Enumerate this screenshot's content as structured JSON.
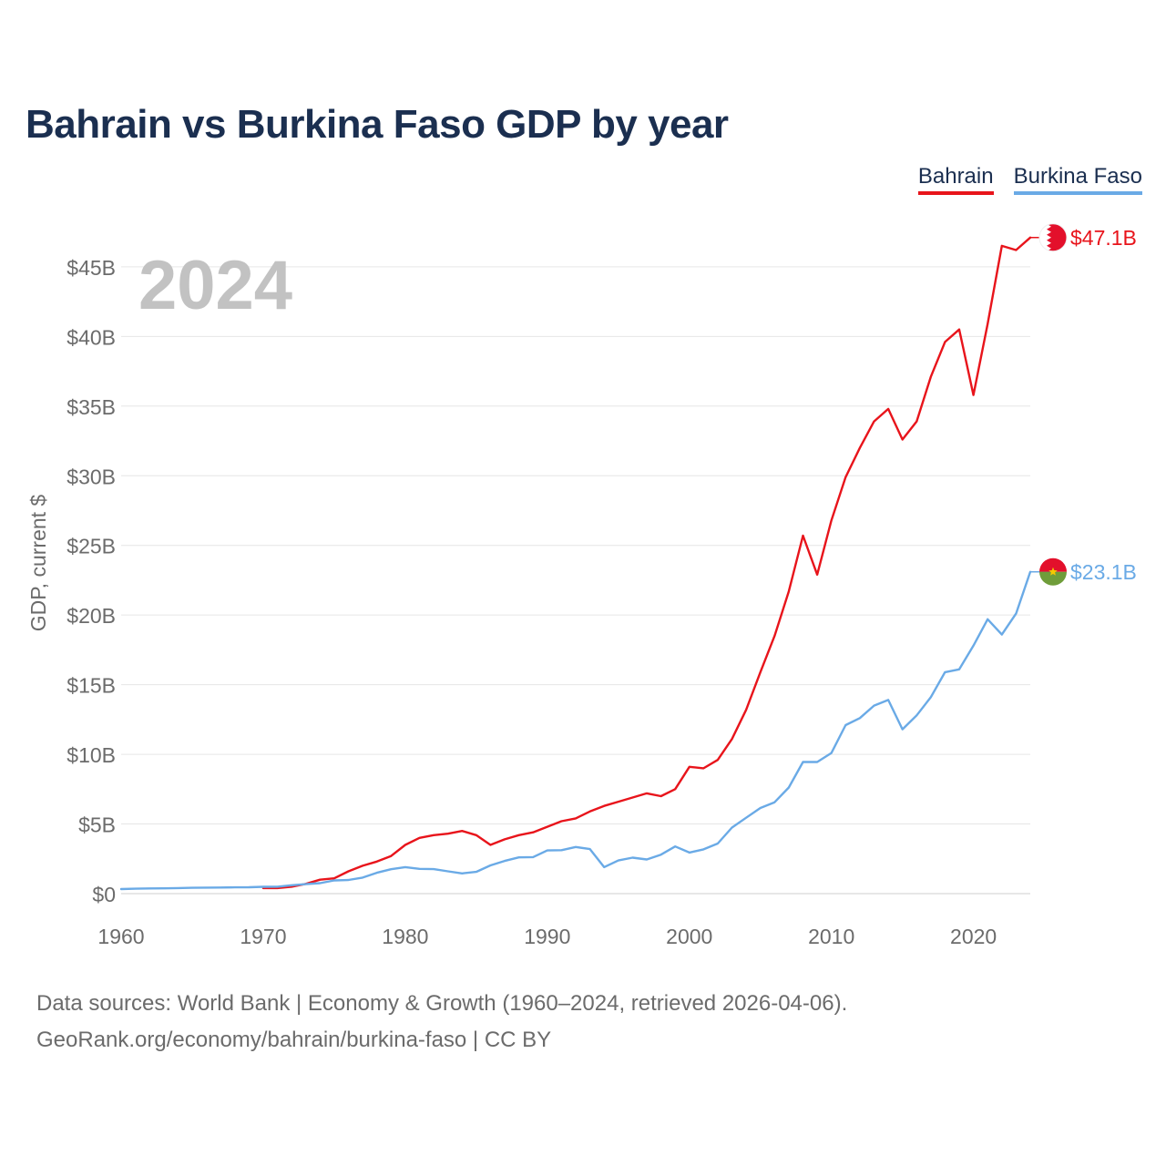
{
  "title": "Bahrain vs Burkina Faso GDP by year",
  "legend": [
    {
      "name": "Bahrain",
      "color": "#e8141b"
    },
    {
      "name": "Burkina Faso",
      "color": "#6aaae6"
    }
  ],
  "year_label": "2024",
  "source": {
    "line1": "Data sources: World Bank | Economy & Growth (1960–2024, retrieved 2026-04-06).",
    "line2": "GeoRank.org/economy/bahrain/burkina-faso | CC BY"
  },
  "chart_data": {
    "type": "line",
    "title": "Bahrain vs Burkina Faso GDP by year",
    "xlabel": "",
    "ylabel": "GDP, current $",
    "xlim": [
      1960,
      2024
    ],
    "ylim": [
      0,
      48
    ],
    "x_ticks": [
      1960,
      1970,
      1980,
      1990,
      2000,
      2010,
      2020
    ],
    "x_tick_labels": [
      "1960",
      "1970",
      "1980",
      "1990",
      "2000",
      "2010",
      "2020"
    ],
    "y_ticks": [
      0,
      5,
      10,
      15,
      20,
      25,
      30,
      35,
      40,
      45
    ],
    "y_tick_labels": [
      "$0",
      "$5B",
      "$10B",
      "$15B",
      "$20B",
      "$25B",
      "$30B",
      "$35B",
      "$40B",
      "$45B"
    ],
    "grid": true,
    "legend_position": "top-right",
    "series": [
      {
        "name": "Bahrain",
        "color": "#e8141b",
        "end_label": "$47.1B",
        "x": [
          1970,
          1971,
          1972,
          1973,
          1974,
          1975,
          1976,
          1977,
          1978,
          1979,
          1980,
          1981,
          1982,
          1983,
          1984,
          1985,
          1986,
          1987,
          1988,
          1989,
          1990,
          1991,
          1992,
          1993,
          1994,
          1995,
          1996,
          1997,
          1998,
          1999,
          2000,
          2001,
          2002,
          2003,
          2004,
          2005,
          2006,
          2007,
          2008,
          2009,
          2010,
          2011,
          2012,
          2013,
          2014,
          2015,
          2016,
          2017,
          2018,
          2019,
          2020,
          2021,
          2022,
          2023,
          2024
        ],
        "values": [
          0.4,
          0.4,
          0.5,
          0.7,
          1.0,
          1.1,
          1.6,
          2.0,
          2.3,
          2.7,
          3.5,
          4.0,
          4.2,
          4.3,
          4.5,
          4.2,
          3.5,
          3.9,
          4.2,
          4.4,
          4.8,
          5.2,
          5.4,
          5.9,
          6.3,
          6.6,
          6.9,
          7.2,
          7.0,
          7.5,
          9.1,
          9.0,
          9.6,
          11.1,
          13.2,
          15.9,
          18.5,
          21.7,
          25.7,
          22.9,
          26.8,
          29.9,
          32.0,
          33.9,
          34.8,
          32.6,
          33.9,
          37.1,
          39.6,
          40.5,
          35.8,
          40.9,
          46.5,
          46.2,
          47.1
        ]
      },
      {
        "name": "Burkina Faso",
        "color": "#6aaae6",
        "end_label": "$23.1B",
        "x": [
          1960,
          1961,
          1962,
          1963,
          1964,
          1965,
          1966,
          1967,
          1968,
          1969,
          1970,
          1971,
          1972,
          1973,
          1974,
          1975,
          1976,
          1977,
          1978,
          1979,
          1980,
          1981,
          1982,
          1983,
          1984,
          1985,
          1986,
          1987,
          1988,
          1989,
          1990,
          1991,
          1992,
          1993,
          1994,
          1995,
          1996,
          1997,
          1998,
          1999,
          2000,
          2001,
          2002,
          2003,
          2004,
          2005,
          2006,
          2007,
          2008,
          2009,
          2010,
          2011,
          2012,
          2013,
          2014,
          2015,
          2016,
          2017,
          2018,
          2019,
          2020,
          2021,
          2022,
          2023,
          2024
        ],
        "values": [
          0.33,
          0.35,
          0.37,
          0.38,
          0.4,
          0.42,
          0.43,
          0.44,
          0.45,
          0.46,
          0.49,
          0.5,
          0.6,
          0.68,
          0.75,
          0.95,
          0.98,
          1.15,
          1.5,
          1.75,
          1.9,
          1.78,
          1.76,
          1.6,
          1.45,
          1.56,
          2.03,
          2.35,
          2.6,
          2.62,
          3.1,
          3.12,
          3.35,
          3.2,
          1.9,
          2.38,
          2.58,
          2.45,
          2.8,
          3.39,
          2.95,
          3.18,
          3.6,
          4.74,
          5.45,
          6.15,
          6.56,
          7.62,
          9.45,
          9.45,
          10.1,
          12.1,
          12.6,
          13.5,
          13.9,
          11.8,
          12.8,
          14.1,
          15.9,
          16.1,
          17.8,
          19.7,
          18.6,
          20.1,
          23.1
        ]
      }
    ]
  }
}
